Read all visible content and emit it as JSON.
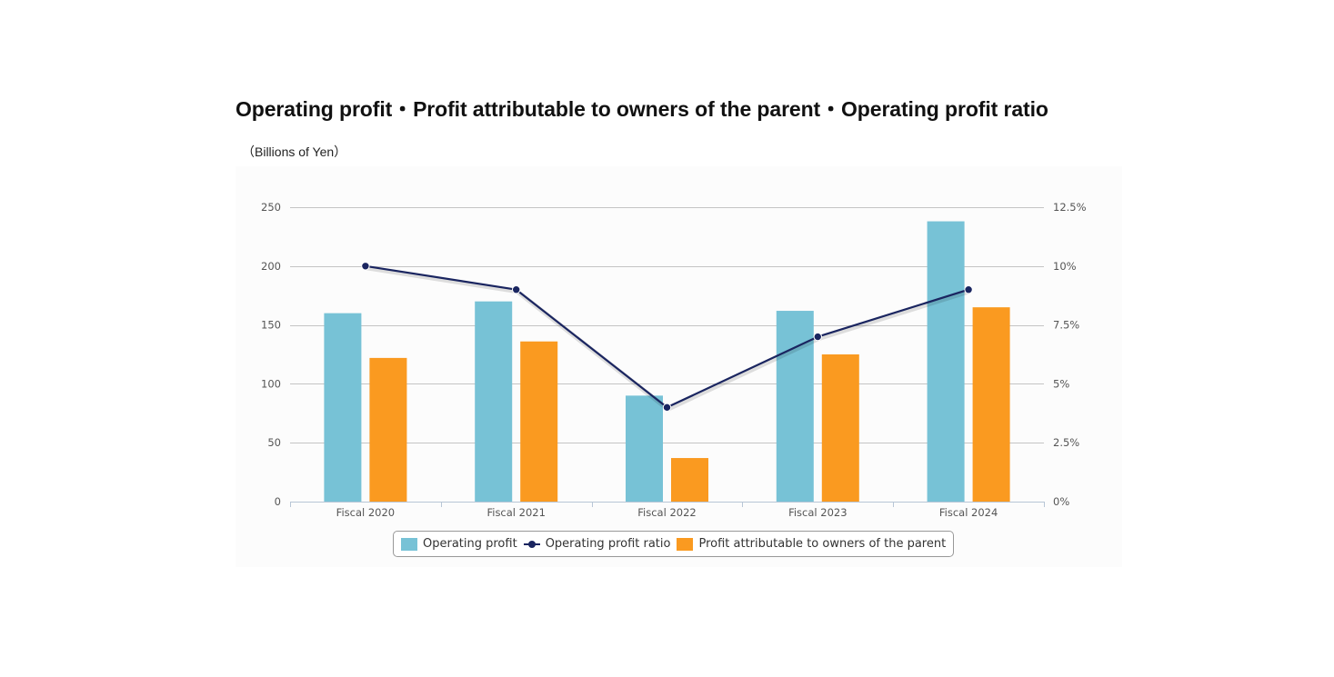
{
  "page": {
    "title": "Operating profit・Profit attributable to owners of the parent・Operating profit ratio",
    "unit_label": "（Billions of Yen）"
  },
  "chart_data": {
    "type": "bar",
    "categories": [
      "Fiscal 2020",
      "Fiscal 2021",
      "Fiscal 2022",
      "Fiscal 2023",
      "Fiscal 2024"
    ],
    "series": [
      {
        "name": "Operating profit",
        "type": "bar",
        "axis": "left",
        "color": "#77c2d6",
        "values": [
          160,
          170,
          90,
          162,
          238
        ]
      },
      {
        "name": "Operating profit ratio",
        "type": "line",
        "axis": "right",
        "color": "#1a2560",
        "values": [
          10,
          9,
          4,
          7,
          9
        ]
      },
      {
        "name": "Profit attributable to owners of the parent",
        "type": "bar",
        "axis": "left",
        "color": "#fa9a20",
        "values": [
          122,
          136,
          37,
          125,
          165
        ]
      }
    ],
    "y_left": {
      "min": 0,
      "max": 250,
      "ticks": [
        0,
        50,
        100,
        150,
        200,
        250
      ],
      "tick_labels": [
        "0",
        "50",
        "100",
        "150",
        "200",
        "250"
      ]
    },
    "y_right": {
      "min": 0,
      "max": 12.5,
      "ticks": [
        0,
        2.5,
        5,
        7.5,
        10,
        12.5
      ],
      "tick_labels": [
        "0%",
        "2.5%",
        "5%",
        "7.5%",
        "10%",
        "12.5%"
      ]
    },
    "grid": true,
    "legend_position": "bottom-center"
  },
  "legend": {
    "items": [
      {
        "label": "Operating profit",
        "kind": "bar",
        "color": "#77c2d6"
      },
      {
        "label": "Operating profit ratio",
        "kind": "line",
        "color": "#1a2560"
      },
      {
        "label": "Profit attributable to owners of the parent",
        "kind": "bar",
        "color": "#fa9a20"
      }
    ]
  }
}
